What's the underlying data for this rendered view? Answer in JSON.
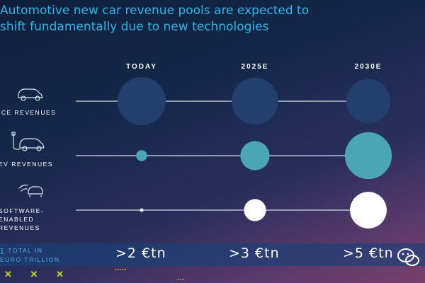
{
  "title": {
    "line1": "Automotive new car revenue pools are expected to",
    "line2": "shift fundamentally due to new technologies"
  },
  "colors": {
    "title": "#2bb5e8",
    "ice_bubble": "#233f6e",
    "ev_bubble": "#4aa6b4",
    "software_bubble": "#ffffff",
    "connector": "#d0dbe6",
    "total_band": "#1a4078"
  },
  "chart_data": {
    "type": "bubble",
    "categories": [
      "TODAY",
      "2025E",
      "2030E"
    ],
    "series": [
      {
        "name": "ICE REVENUES",
        "icon": "car-outline-icon",
        "values": [
          1.9,
          1.8,
          1.6
        ]
      },
      {
        "name": "EV REVENUES",
        "icon": "ev-car-plug-icon",
        "values": [
          0.1,
          0.7,
          1.8
        ]
      },
      {
        "name": "SOFTWARE-ENABLED REVENUES",
        "icon": "connected-car-icon",
        "values": [
          0.01,
          0.4,
          1.1
        ]
      }
    ],
    "row_labels": [
      [
        "ICE REVENUES"
      ],
      [
        "EV REVENUES"
      ],
      [
        "SOFTWARE-",
        "ENABLED",
        "REVENUES"
      ]
    ],
    "totals": {
      "label_line1": "∑ TOTAL IN",
      "label_line2": "EURO TRILLION",
      "values": [
        ">2 €tn",
        ">3 €tn",
        ">5 €tn"
      ]
    }
  },
  "footer": {
    "marks": "✕ ✕ ✕",
    "dots_a": "▪▪▪▪▪",
    "dots_b": "▪▪▪"
  }
}
